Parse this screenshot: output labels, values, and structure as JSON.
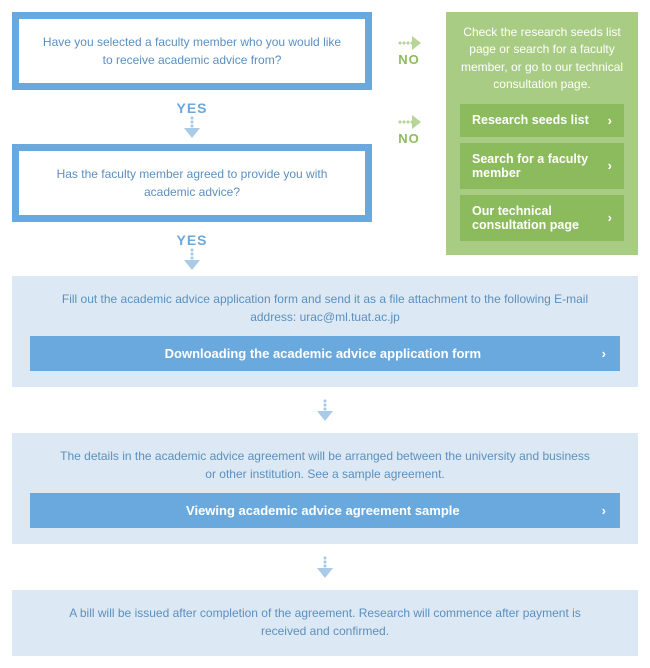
{
  "decisions": {
    "q1": "Have you selected a faculty member who you would like to receive academic advice from?",
    "q2": "Has the faculty member agreed to provide you with academic advice?"
  },
  "labels": {
    "yes": "YES",
    "no": "NO"
  },
  "greenPanel": {
    "text": "Check the research seeds list page or search for a faculty member, or go to our technical consultation page.",
    "buttons": [
      {
        "label": "Research seeds list"
      },
      {
        "label": "Search for a faculty member"
      },
      {
        "label": "Our technical consultation page"
      }
    ]
  },
  "steps": {
    "s1": {
      "text": "Fill out the academic advice application form and send it as a file attachment to the following E-mail address: urac@ml.tuat.ac.jp",
      "button": "Downloading the academic advice application form"
    },
    "s2": {
      "text": "The details in the academic advice agreement will be arranged between the university and business or other institution. See a sample agreement.",
      "button": "Viewing academic advice agreement sample"
    },
    "s3": {
      "text": "A bill will be issued after completion of the agreement. Research will commence after payment is received and confirmed."
    }
  },
  "colors": {
    "blueBox": "#6aa9dd",
    "blueText": "#5c8fbe",
    "bluePanel": "#dce9f4",
    "greenPanel": "#a9cc85",
    "greenBtn": "#8cbb5e",
    "arrowBlue": "#a9cbe7",
    "arrowGreen": "#b7d49a"
  },
  "chartType": "flowchart"
}
